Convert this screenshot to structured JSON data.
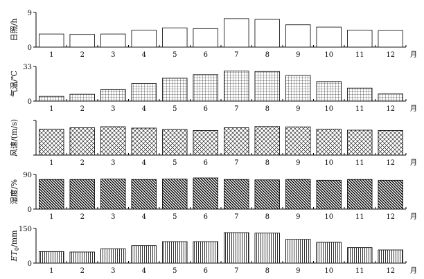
{
  "chart_data": [
    {
      "type": "bar",
      "ylabel": "日照/h",
      "ylim": [
        0,
        9
      ],
      "yticks": [
        "0",
        "9"
      ],
      "pattern": "none",
      "categories": [
        "1",
        "2",
        "3",
        "4",
        "5",
        "6",
        "7",
        "8",
        "9",
        "10",
        "11",
        "12"
      ],
      "month_label": "月",
      "values": [
        3.4,
        3.3,
        3.4,
        4.4,
        5.0,
        4.8,
        7.4,
        7.2,
        5.8,
        5.2,
        4.4,
        4.3
      ]
    },
    {
      "type": "bar",
      "ylabel": "气温/℃",
      "ylim": [
        0,
        33
      ],
      "yticks": [
        "0",
        "33"
      ],
      "pattern": "grid",
      "categories": [
        "1",
        "2",
        "3",
        "4",
        "5",
        "6",
        "7",
        "8",
        "9",
        "10",
        "11",
        "12"
      ],
      "month_label": "月",
      "values": [
        4.5,
        6.5,
        11.0,
        16.8,
        21.8,
        25.2,
        28.6,
        28.2,
        24.4,
        18.6,
        12.4,
        6.8
      ]
    },
    {
      "type": "bar",
      "ylabel": "风速/(m/s)",
      "ylim": [
        0,
        2
      ],
      "yticks": [],
      "pattern": "crosshatch",
      "categories": [
        "1",
        "2",
        "3",
        "4",
        "5",
        "6",
        "7",
        "8",
        "9",
        "10",
        "11",
        "12"
      ],
      "month_label": "月",
      "values": [
        1.5,
        1.58,
        1.64,
        1.56,
        1.48,
        1.42,
        1.58,
        1.65,
        1.63,
        1.5,
        1.44,
        1.42
      ]
    },
    {
      "type": "bar",
      "ylabel": "湿度/%",
      "ylim": [
        0,
        90
      ],
      "yticks": [
        "0",
        "90"
      ],
      "pattern": "diagonal",
      "categories": [
        "1",
        "2",
        "3",
        "4",
        "5",
        "6",
        "7",
        "8",
        "9",
        "10",
        "11",
        "12"
      ],
      "month_label": "月",
      "values": [
        77,
        77,
        78,
        77,
        78,
        81,
        77,
        76,
        77,
        75,
        77,
        75
      ]
    },
    {
      "type": "bar",
      "ylabel": "ET0/mm",
      "ylim": [
        0,
        150
      ],
      "yticks": [
        "0",
        "150"
      ],
      "pattern": "vertical",
      "categories": [
        "1",
        "2",
        "3",
        "4",
        "5",
        "6",
        "7",
        "8",
        "9",
        "10",
        "11",
        "12"
      ],
      "month_label": "月",
      "values": [
        50,
        48,
        62,
        76,
        93,
        93,
        132,
        130,
        103,
        90,
        67,
        57
      ]
    }
  ]
}
